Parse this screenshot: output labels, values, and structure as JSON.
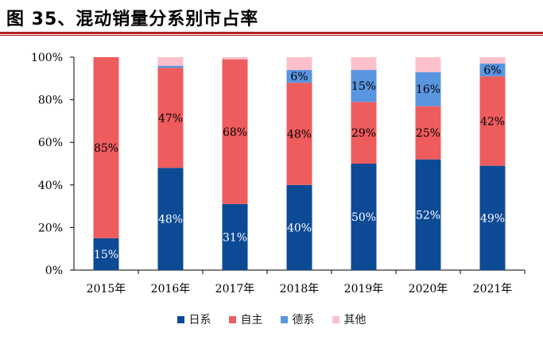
{
  "title": "图 35、混动销量分系别市占率",
  "colors": {
    "title_rule": "#b01f24",
    "axis": "#000000"
  },
  "chart_data": {
    "type": "bar",
    "stacked": true,
    "categories": [
      "2015年",
      "2016年",
      "2017年",
      "2018年",
      "2019年",
      "2020年",
      "2021年"
    ],
    "series": [
      {
        "name": "日系",
        "color": "#0c4a96",
        "values": [
          15,
          48,
          31,
          40,
          50,
          52,
          49
        ],
        "labels": [
          "15%",
          "48%",
          "31%",
          "40%",
          "50%",
          "52%",
          "49%"
        ],
        "label_color": "#ffffff"
      },
      {
        "name": "自主",
        "color": "#ee5c5e",
        "values": [
          85,
          47,
          68,
          48,
          29,
          25,
          42
        ],
        "labels": [
          "85%",
          "47%",
          "68%",
          "48%",
          "29%",
          "25%",
          "42%"
        ],
        "label_color": "#000000"
      },
      {
        "name": "德系",
        "color": "#5a95e0",
        "values": [
          0,
          1,
          0,
          6,
          15,
          16,
          6
        ],
        "labels": [
          "",
          "",
          "",
          "6%",
          "15%",
          "16%",
          "6%"
        ],
        "label_color": "#000000"
      },
      {
        "name": "其他",
        "color": "#fbc0cb",
        "values": [
          0,
          4,
          1,
          6,
          6,
          7,
          3
        ],
        "labels": [
          "",
          "",
          "",
          "",
          "",
          "",
          ""
        ],
        "label_color": "#000000"
      }
    ],
    "yticks": [
      "0%",
      "20%",
      "40%",
      "60%",
      "80%",
      "100%"
    ],
    "ylim": [
      0,
      100
    ],
    "grid": false,
    "legend_position": "bottom"
  }
}
